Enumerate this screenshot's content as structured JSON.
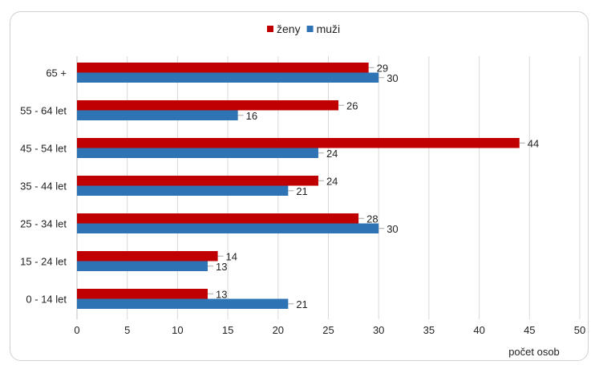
{
  "chart_data": {
    "type": "bar",
    "orientation": "horizontal",
    "categories": [
      "65 +",
      "55 - 64 let",
      "45 - 54 let",
      "35 - 44 let",
      "25 - 34 let",
      "15 - 24 let",
      "0 - 14 let"
    ],
    "series": [
      {
        "name": "ženy",
        "color": "#c00000",
        "values": [
          29,
          26,
          44,
          24,
          28,
          14,
          13
        ]
      },
      {
        "name": "muži",
        "color": "#2e74b5",
        "values": [
          30,
          16,
          24,
          21,
          30,
          13,
          21
        ]
      }
    ],
    "xlabel": "počet osob",
    "xlim": [
      0,
      50
    ],
    "xticks": [
      0,
      5,
      10,
      15,
      20,
      25,
      30,
      35,
      40,
      45,
      50
    ],
    "grid": "vertical",
    "legend": "top-center",
    "data_labels": true
  }
}
